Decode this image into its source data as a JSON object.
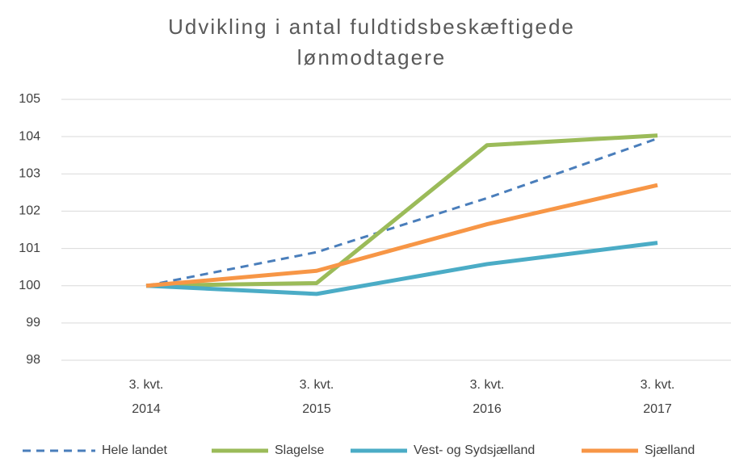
{
  "chart_data": {
    "type": "line",
    "title": "Udvikling i antal fuldtidsbeskæftigede lønmodtagere",
    "categories": [
      "3. kvt.\n2014",
      "3. kvt.\n2015",
      "3. kvt.\n2016",
      "3. kvt.\n2017"
    ],
    "series": [
      {
        "name": "Hele landet",
        "color": "#4a7ebb",
        "dashed": true,
        "values": [
          100,
          100.9,
          102.35,
          103.95
        ]
      },
      {
        "name": "Slagelse",
        "color": "#9bbb59",
        "values": [
          100,
          100.07,
          103.77,
          104.03
        ]
      },
      {
        "name": "Vest- og Sydsjælland",
        "color": "#4bacc6",
        "values": [
          100,
          99.78,
          100.58,
          101.15
        ]
      },
      {
        "name": "Sjælland",
        "color": "#f79646",
        "values": [
          100,
          100.4,
          101.65,
          102.7
        ]
      }
    ],
    "ylim": [
      98,
      105
    ],
    "yticks": [
      98,
      99,
      100,
      101,
      102,
      103,
      104,
      105
    ],
    "grid": true,
    "legend": "bottom"
  }
}
